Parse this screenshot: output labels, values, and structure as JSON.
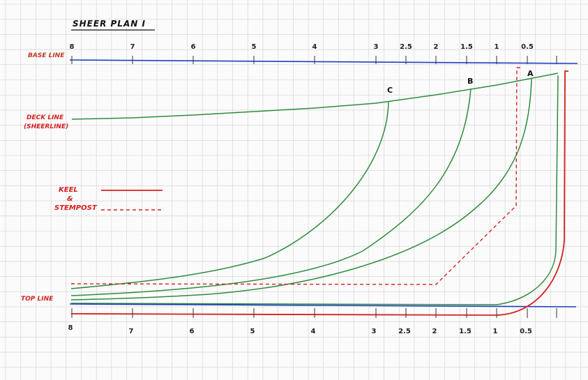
{
  "title": "SHEER PLAN I",
  "labels": {
    "base_line": "BASE LINE",
    "deck_line": "DECK LINE",
    "deck_line_sub": "(SHEERLINE)",
    "top_line": "TOP LINE",
    "keel": "KEEL",
    "amp": "&",
    "stempost": "STEMPOST"
  },
  "stations": {
    "a": "A",
    "b": "B",
    "c": "C"
  },
  "top_ticks": [
    "8",
    "7",
    "6",
    "5",
    "4",
    "3",
    "2.5",
    "2",
    "1.5",
    "1",
    "0.5"
  ],
  "bottom_ticks": [
    "8",
    "7",
    "6",
    "5",
    "4",
    "3",
    "2.5",
    "2",
    "1.5",
    "1",
    "0.5"
  ],
  "colors": {
    "base_line": "#1f3fbf",
    "deck_line": "#2e8b3e",
    "keel": "#d42020",
    "grid": "#cfcfcf"
  }
}
